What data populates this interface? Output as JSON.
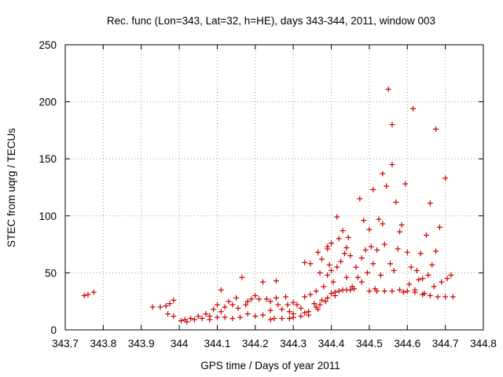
{
  "chart_data": {
    "type": "scatter",
    "title": "Rec. func (Lon=343, Lat=32, h=HE), days 343-344, 2011, window 003",
    "xlabel": "GPS time / Days of year 2011",
    "ylabel": "STEC from uqrg / TECUs",
    "xlim": [
      343.7,
      344.8
    ],
    "ylim": [
      0,
      250
    ],
    "x_ticks": [
      343.7,
      343.8,
      343.9,
      344.0,
      344.1,
      344.2,
      344.3,
      344.4,
      344.5,
      344.6,
      344.7,
      344.8
    ],
    "x_tick_labels": [
      "343.7",
      "343.8",
      "343.9",
      "344",
      "344.1",
      "344.2",
      "344.3",
      "344.4",
      "344.5",
      "344.6",
      "344.7",
      "344.8"
    ],
    "y_ticks": [
      0,
      50,
      100,
      150,
      200,
      250
    ],
    "y_tick_labels": [
      "0",
      "50",
      "100",
      "150",
      "200",
      "250"
    ],
    "grid": true,
    "marker": "+",
    "color": "#cc0000",
    "points": [
      [
        343.75,
        30
      ],
      [
        343.76,
        31
      ],
      [
        343.775,
        33
      ],
      [
        343.93,
        20
      ],
      [
        343.95,
        20
      ],
      [
        343.965,
        21
      ],
      [
        343.975,
        23
      ],
      [
        343.985,
        26
      ],
      [
        343.97,
        14
      ],
      [
        343.985,
        12
      ],
      [
        344.005,
        8
      ],
      [
        344.015,
        9
      ],
      [
        344.02,
        7
      ],
      [
        344.03,
        10
      ],
      [
        344.04,
        9
      ],
      [
        344.05,
        12
      ],
      [
        344.06,
        10
      ],
      [
        344.07,
        14
      ],
      [
        344.08,
        12
      ],
      [
        344.09,
        18
      ],
      [
        344.1,
        22
      ],
      [
        344.11,
        16
      ],
      [
        344.12,
        20
      ],
      [
        344.13,
        25
      ],
      [
        344.14,
        22
      ],
      [
        344.15,
        28
      ],
      [
        344.08,
        9
      ],
      [
        344.1,
        11
      ],
      [
        344.12,
        11
      ],
      [
        344.14,
        10
      ],
      [
        344.16,
        11
      ],
      [
        344.11,
        35
      ],
      [
        344.155,
        19
      ],
      [
        344.165,
        46
      ],
      [
        344.175,
        22
      ],
      [
        344.18,
        25
      ],
      [
        344.19,
        27
      ],
      [
        344.2,
        30
      ],
      [
        344.21,
        27
      ],
      [
        344.22,
        42
      ],
      [
        344.23,
        27
      ],
      [
        344.24,
        25
      ],
      [
        344.18,
        14
      ],
      [
        344.2,
        12
      ],
      [
        344.22,
        13
      ],
      [
        344.24,
        17
      ],
      [
        344.24,
        9
      ],
      [
        344.255,
        43
      ],
      [
        344.255,
        28
      ],
      [
        344.26,
        22
      ],
      [
        344.27,
        18
      ],
      [
        344.28,
        29
      ],
      [
        344.285,
        22
      ],
      [
        344.29,
        16
      ],
      [
        344.25,
        10
      ],
      [
        344.27,
        10
      ],
      [
        344.29,
        10
      ],
      [
        344.3,
        24
      ],
      [
        344.3,
        14
      ],
      [
        344.31,
        22
      ],
      [
        344.32,
        19
      ],
      [
        344.33,
        15
      ],
      [
        344.34,
        13
      ],
      [
        344.3,
        11
      ],
      [
        344.32,
        12
      ],
      [
        344.34,
        16
      ],
      [
        344.33,
        59
      ],
      [
        344.345,
        58
      ],
      [
        344.33,
        29
      ],
      [
        344.345,
        31
      ],
      [
        344.355,
        23
      ],
      [
        344.36,
        34
      ],
      [
        344.365,
        18
      ],
      [
        344.365,
        68
      ],
      [
        344.37,
        50
      ],
      [
        344.375,
        62
      ],
      [
        344.38,
        38
      ],
      [
        344.385,
        25
      ],
      [
        344.39,
        48
      ],
      [
        344.39,
        71
      ],
      [
        344.36,
        20
      ],
      [
        344.37,
        22
      ],
      [
        344.375,
        26
      ],
      [
        344.39,
        28
      ],
      [
        344.395,
        57
      ],
      [
        344.4,
        32
      ],
      [
        344.405,
        42
      ],
      [
        344.41,
        30
      ],
      [
        344.39,
        73
      ],
      [
        344.4,
        76
      ],
      [
        344.4,
        52
      ],
      [
        344.415,
        55
      ],
      [
        344.415,
        99
      ],
      [
        344.42,
        80
      ],
      [
        344.425,
        60
      ],
      [
        344.43,
        87
      ],
      [
        344.435,
        67
      ],
      [
        344.44,
        46
      ],
      [
        344.44,
        72
      ],
      [
        344.445,
        81
      ],
      [
        344.45,
        65
      ],
      [
        344.455,
        38
      ],
      [
        344.41,
        33
      ],
      [
        344.42,
        34
      ],
      [
        344.43,
        35
      ],
      [
        344.44,
        35
      ],
      [
        344.45,
        35
      ],
      [
        344.46,
        36
      ],
      [
        344.465,
        55
      ],
      [
        344.47,
        46
      ],
      [
        344.475,
        115
      ],
      [
        344.48,
        63
      ],
      [
        344.48,
        42
      ],
      [
        344.485,
        96
      ],
      [
        344.49,
        70
      ],
      [
        344.495,
        50
      ],
      [
        344.5,
        88
      ],
      [
        344.505,
        73
      ],
      [
        344.51,
        58
      ],
      [
        344.51,
        123
      ],
      [
        344.515,
        36
      ],
      [
        344.52,
        70
      ],
      [
        344.525,
        97
      ],
      [
        344.53,
        48
      ],
      [
        344.535,
        137
      ],
      [
        344.535,
        93
      ],
      [
        344.54,
        75
      ],
      [
        344.545,
        126
      ],
      [
        344.55,
        211
      ],
      [
        344.555,
        58
      ],
      [
        344.56,
        145
      ],
      [
        344.56,
        180
      ],
      [
        344.565,
        52
      ],
      [
        344.57,
        112
      ],
      [
        344.575,
        71
      ],
      [
        344.58,
        86
      ],
      [
        344.585,
        92
      ],
      [
        344.59,
        33
      ],
      [
        344.595,
        128
      ],
      [
        344.6,
        68
      ],
      [
        344.605,
        40
      ],
      [
        344.61,
        55
      ],
      [
        344.615,
        194
      ],
      [
        344.62,
        35
      ],
      [
        344.625,
        52
      ],
      [
        344.63,
        44
      ],
      [
        344.635,
        67
      ],
      [
        344.64,
        45
      ],
      [
        344.645,
        32
      ],
      [
        344.65,
        83
      ],
      [
        344.655,
        48
      ],
      [
        344.66,
        111
      ],
      [
        344.665,
        57
      ],
      [
        344.67,
        38
      ],
      [
        344.675,
        176
      ],
      [
        344.675,
        69
      ],
      [
        344.685,
        90
      ],
      [
        344.69,
        42
      ],
      [
        344.7,
        133
      ],
      [
        344.705,
        45
      ],
      [
        344.715,
        48
      ],
      [
        344.5,
        34
      ],
      [
        344.52,
        34
      ],
      [
        344.54,
        34
      ],
      [
        344.56,
        34
      ],
      [
        344.58,
        35
      ],
      [
        344.6,
        34
      ],
      [
        344.62,
        33
      ],
      [
        344.64,
        31
      ],
      [
        344.66,
        30
      ],
      [
        344.68,
        29
      ],
      [
        344.7,
        29
      ],
      [
        344.72,
        29
      ]
    ]
  }
}
